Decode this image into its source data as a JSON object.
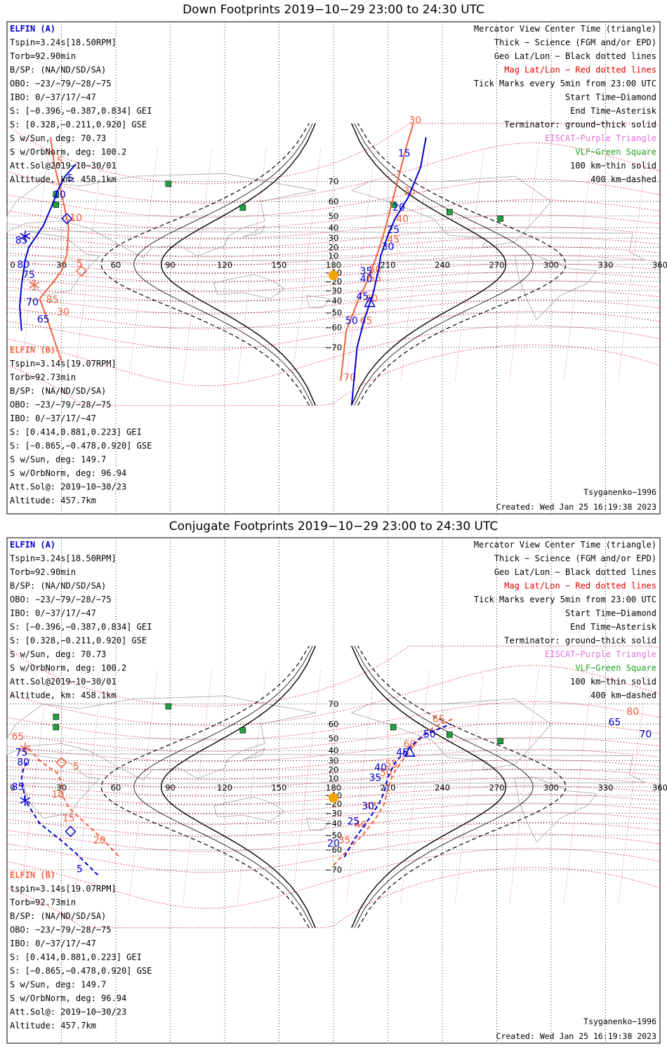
{
  "panels": [
    {
      "id": "down",
      "title": "Down Footprints 2019−10−29 23:00 to 24:30 UTC",
      "elfin_a": {
        "header": "ELFIN (A)",
        "lines": [
          "Tspin=3.24s[18.50RPM]",
          "Torb=92.90min",
          "B/SP: (NA/ND/SD/SA)",
          "OBO: −23/−79/−28/−75",
          "IBO: 0/−37/17/−47",
          "S: [−0.396,−0.387,0.834] GEI",
          "S: [0.328,−0.211,0.920] GSE",
          "S w/Sun, deg: 70.73",
          "S w/OrbNorm, deg: 100.2",
          "Att.Sol@2019−10−30/01",
          "Altitude, km: 458.1km"
        ]
      },
      "elfin_b": {
        "header": "ELFIN (B)",
        "lines": [
          "Tspin=3.14s[19.07RPM]",
          "Torb=92.73min",
          "B/SP: (NA/ND/SD/SA)",
          "OBO: −23/−79/−28/−75",
          "IBO: 0/−37/17/−47",
          "S: [0.414,0.881,0.223] GEI",
          "S: [−0.865,−0.478,0.920] GSE",
          "S w/Sun, deg: 149.7",
          "S w/OrbNorm, deg: 96.94",
          "Att.Sol@: 2019−10−30/23",
          "Altitude: 457.7km"
        ]
      },
      "legend": [
        {
          "text": "Mercator View Center Time (triangle)",
          "color": "#000000"
        },
        {
          "text": "Thick − Science (FGM and/or EPD)",
          "color": "#000000"
        },
        {
          "text": "Geo Lat/Lon − Black dotted lines",
          "color": "#000000"
        },
        {
          "text": "Mag Lat/Lon − Red dotted lines",
          "color": "#e00000"
        },
        {
          "text": "Tick Marks every 5min from 23:00 UTC",
          "color": "#000000"
        },
        {
          "text": "Start Time−Diamond",
          "color": "#000000"
        },
        {
          "text": "End Time−Asterisk",
          "color": "#000000"
        },
        {
          "text": "Terminator: ground−thick solid",
          "color": "#000000"
        },
        {
          "text": "EISCAT−Purple Triangle",
          "color": "#e070e0"
        },
        {
          "text": "VLF−Green Square",
          "color": "#20a020"
        },
        {
          "text": "100 km−thin solid",
          "color": "#000000"
        },
        {
          "text": "400 km−dashed",
          "color": "#000000"
        }
      ],
      "model": "Tsyganenko−1996",
      "created": "Created: Wed Jan 25 16:19:38 2023",
      "track_a": {
        "style": "solid",
        "points": [
          [
            38,
            76
          ],
          [
            32,
            72
          ],
          [
            28,
            66
          ],
          [
            25,
            58
          ],
          [
            20,
            42
          ],
          [
            12,
            20
          ],
          [
            10,
            5
          ],
          [
            9,
            -10
          ],
          [
            8,
            -24
          ],
          [
            7,
            -45
          ],
          [
            8,
            -62
          ]
        ],
        "labels": [
          {
            "t": "5",
            "lon": 35,
            "lat": 70
          },
          {
            "t": "10",
            "lon": 29,
            "lat": 62
          },
          {
            "t": "85",
            "lon": 8,
            "lat": 24
          },
          {
            "t": "80",
            "lon": 9,
            "lat": -4
          },
          {
            "t": "75",
            "lon": 12,
            "lat": -16
          },
          {
            "t": "70",
            "lon": 14,
            "lat": -44
          },
          {
            "t": "65",
            "lon": 20,
            "lat": -57
          }
        ],
        "markers": [
          {
            "type": "asterisk",
            "lon": 10,
            "lat": 32
          },
          {
            "type": "diamond",
            "lon": 33,
            "lat": 48
          }
        ],
        "track2": {
          "points": [
            [
              231,
              82
            ],
            [
              228,
              75
            ],
            [
              221,
              62
            ],
            [
              214,
              48
            ],
            [
              210,
              33
            ],
            [
              206,
              10
            ],
            [
              205,
              -4
            ],
            [
              202,
              -32
            ],
            [
              197,
              -55
            ],
            [
              193,
              -70
            ],
            [
              190,
              -84
            ]
          ],
          "labels": [
            {
              "t": "15",
              "lon": 219,
              "lat": 78
            },
            {
              "t": "20",
              "lon": 216,
              "lat": 54
            },
            {
              "t": "25",
              "lon": 213,
              "lat": 35
            },
            {
              "t": "30",
              "lon": 210,
              "lat": 17
            },
            {
              "t": "35",
              "lon": 198,
              "lat": -12
            },
            {
              "t": "40",
              "lon": 198,
              "lat": -21
            },
            {
              "t": "45",
              "lon": 196,
              "lat": -39
            },
            {
              "t": "50",
              "lon": 190,
              "lat": -58
            }
          ],
          "markers": [
            {
              "type": "triangle",
              "lon": 200,
              "lat": -42
            }
          ]
        }
      },
      "track_b": {
        "style": "solid",
        "points": [
          [
            24,
            82
          ],
          [
            26,
            76
          ],
          [
            31,
            60
          ],
          [
            34,
            40
          ],
          [
            33,
            12
          ],
          [
            30,
            -8
          ],
          [
            25,
            -22
          ],
          [
            18,
            -38
          ],
          [
            22,
            -54
          ],
          [
            30,
            -75
          ]
        ],
        "labels": [
          {
            "t": "5",
            "lon": 29,
            "lat": 76
          },
          {
            "t": "10",
            "lon": 38,
            "lat": 46
          },
          {
            "t": "5",
            "lon": 40,
            "lat": -3
          },
          {
            "t": "30",
            "lon": 31,
            "lat": -52
          },
          {
            "t": "85",
            "lon": 25,
            "lat": -42
          }
        ],
        "markers": [
          {
            "type": "diamond",
            "lon": 41,
            "lat": -8
          },
          {
            "type": "asterisk",
            "lon": 15,
            "lat": -24
          }
        ],
        "track2": {
          "points": [
            [
              224,
              84
            ],
            [
              220,
              80
            ],
            [
              214,
              66
            ],
            [
              210,
              48
            ],
            [
              207,
              30
            ],
            [
              203,
              5
            ],
            [
              199,
              -18
            ],
            [
              193,
              -42
            ],
            [
              187,
              -62
            ],
            [
              184,
              -80
            ]
          ],
          "labels": [
            {
              "t": "30",
              "lon": 225,
              "lat": 86
            },
            {
              "t": "35",
              "lon": 222,
              "lat": 64
            },
            {
              "t": "40",
              "lon": 218,
              "lat": 45
            },
            {
              "t": "45",
              "lon": 213,
              "lat": 25
            },
            {
              "t": "50",
              "lon": 203,
              "lat": -10
            },
            {
              "t": "55",
              "lon": 203,
              "lat": -20
            },
            {
              "t": "60",
              "lon": 201,
              "lat": -41
            },
            {
              "t": "65",
              "lon": 198,
              "lat": -58
            },
            {
              "t": "70",
              "lon": 189,
              "lat": -80
            }
          ],
          "markers": []
        }
      }
    },
    {
      "id": "conjugate",
      "title": "Conjugate Footprints 2019−10−29 23:00 to 24:30 UTC",
      "elfin_a": {
        "header": "ELFIN (A)",
        "lines": [
          "Tspin=3.24s[18.50RPM]",
          "Torb=92.90min",
          "B/SP: (NA/ND/SD/SA)",
          "OBO: −23/−79/−28/−75",
          "IBO: 0/−37/17/−47",
          "S: [−0.396,−0.387,0.834] GEI",
          "S: [0.328,−0.211,0.920] GSE",
          "S w/Sun, deg: 70.73",
          "S w/OrbNorm, deg: 100.2",
          "Att.Sol@2019−10−30/01",
          "Altitude, km: 458.1km"
        ]
      },
      "elfin_b": {
        "header": "ELFIN (B)",
        "lines": [
          "tspin=3.14s[19.07RPM]",
          "Torb=92.73min",
          "B/SP: (NA/ND/SD/SA)",
          "OBO: −23/−79/−28/−75",
          "IBO: 0/−37/17/−47",
          "S: [0.414,0.881,0.223] GEI",
          "S: [−0.865,−0.478,0.920] GSE",
          "S w/Sun, deg: 149.7",
          "S w/OrbNorm, deg: 96.94",
          "Att.Sol@: 2019−10−30/23",
          "Altitude: 457.7km"
        ]
      },
      "legend": [
        {
          "text": "Mercator View Center Time (triangle)",
          "color": "#000000"
        },
        {
          "text": "Thick − Science (FGM and/or EPD)",
          "color": "#000000"
        },
        {
          "text": "Geo Lat/Lon − Black dotted lines",
          "color": "#000000"
        },
        {
          "text": "Mag Lat/Lon − Red dotted lines",
          "color": "#e00000"
        },
        {
          "text": "Tick Marks every 5min from 23:00 UTC",
          "color": "#000000"
        },
        {
          "text": "Start Time−Diamond",
          "color": "#000000"
        },
        {
          "text": "End Time−Asterisk",
          "color": "#000000"
        },
        {
          "text": "Terminator: ground−thick solid",
          "color": "#000000"
        },
        {
          "text": "EISCAT−Purple Triangle",
          "color": "#e070e0"
        },
        {
          "text": "VLF−Green Square",
          "color": "#20a020"
        },
        {
          "text": "100 km−thin solid",
          "color": "#000000"
        },
        {
          "text": "400 km−dashed",
          "color": "#000000"
        }
      ],
      "model": "Tsyganenko−1996",
      "created": "Created: Wed Jan 25 16:19:38 2023",
      "track_a": {
        "style": "dashed",
        "points": [
          [
            11,
            28
          ],
          [
            9,
            22
          ],
          [
            8,
            10
          ],
          [
            9,
            -2
          ],
          [
            10,
            -16
          ],
          [
            18,
            -40
          ],
          [
            30,
            -54
          ],
          [
            38,
            -62
          ],
          [
            50,
            -72
          ]
        ],
        "labels": [
          {
            "t": "75",
            "lon": 8,
            "lat": 35
          },
          {
            "t": "80",
            "lon": 9,
            "lat": 25
          },
          {
            "t": "85",
            "lon": 6,
            "lat": -4
          },
          {
            "t": "5",
            "lon": 40,
            "lat": -71
          }
        ],
        "markers": [
          {
            "type": "asterisk",
            "lon": 10,
            "lat": -16
          },
          {
            "type": "diamond",
            "lon": 35,
            "lat": -47
          }
        ],
        "track2": {
          "points": [
            [
              186,
              -64
            ],
            [
              190,
              -56
            ],
            [
              196,
              -44
            ],
            [
              201,
              -32
            ],
            [
              205,
              -20
            ],
            [
              208,
              -6
            ],
            [
              210,
              12
            ],
            [
              214,
              28
            ],
            [
              220,
              40
            ],
            [
              230,
              53
            ],
            [
              245,
              60
            ]
          ],
          "labels": [
            {
              "t": "20",
              "lon": 180,
              "lat": -58
            },
            {
              "t": "25",
              "lon": 191,
              "lat": -41
            },
            {
              "t": "30",
              "lon": 199,
              "lat": -26
            },
            {
              "t": "35",
              "lon": 203,
              "lat": 7
            },
            {
              "t": "40",
              "lon": 206,
              "lat": 19
            },
            {
              "t": "45",
              "lon": 218,
              "lat": 35
            },
            {
              "t": "50",
              "lon": 233,
              "lat": 51
            },
            {
              "t": "65",
              "lon": 335,
              "lat": 59
            },
            {
              "t": "70",
              "lon": 352,
              "lat": 51
            }
          ],
          "markers": [
            {
              "type": "triangle",
              "lon": 222,
              "lat": 38
            }
          ]
        }
      },
      "track_b": {
        "style": "dashed",
        "points": [
          [
            12,
            42
          ],
          [
            18,
            30
          ],
          [
            28,
            16
          ],
          [
            30,
            4
          ],
          [
            30,
            -8
          ],
          [
            34,
            -24
          ],
          [
            42,
            -38
          ],
          [
            52,
            -52
          ],
          [
            62,
            -64
          ]
        ],
        "labels": [
          {
            "t": "5",
            "lon": 38,
            "lat": 20
          },
          {
            "t": "10",
            "lon": 28,
            "lat": -13
          },
          {
            "t": "15",
            "lon": 34,
            "lat": -38
          },
          {
            "t": "20",
            "lon": 51,
            "lat": -56
          },
          {
            "t": "65",
            "lon": 6,
            "lat": 49
          }
        ],
        "markers": [
          {
            "type": "diamond",
            "lon": 30,
            "lat": 28
          },
          {
            "type": "asterisk",
            "lon": 10,
            "lat": 42
          }
        ],
        "track2": {
          "points": [
            [
              180,
              -68
            ],
            [
              188,
              -60
            ],
            [
              196,
              -50
            ],
            [
              203,
              -36
            ],
            [
              208,
              -20
            ],
            [
              210,
              -2
            ],
            [
              213,
              16
            ],
            [
              218,
              30
            ],
            [
              225,
              46
            ],
            [
              235,
              58
            ],
            [
              246,
              63
            ]
          ],
          "labels": [
            {
              "t": "35",
              "lon": 186,
              "lat": -56
            },
            {
              "t": "40",
              "lon": 195,
              "lat": -44
            },
            {
              "t": "45",
              "lon": 201,
              "lat": -26
            },
            {
              "t": "50",
              "lon": 209,
              "lat": 13
            },
            {
              "t": "55",
              "lon": 212,
              "lat": 23
            },
            {
              "t": "60",
              "lon": 222,
              "lat": 43
            },
            {
              "t": "65",
              "lon": 238,
              "lat": 61
            },
            {
              "t": "80",
              "lon": 345,
              "lat": 65
            }
          ],
          "markers": []
        }
      }
    }
  ],
  "axes": {
    "lon_ticks": [
      "0",
      "30",
      "60",
      "90",
      "120",
      "150",
      "180",
      "210",
      "240",
      "270",
      "300",
      "330",
      "360"
    ],
    "lat_ticks": [
      "70",
      "60",
      "50",
      "40",
      "30",
      "20",
      "10",
      "−10",
      "−20",
      "−30",
      "−40",
      "−50",
      "−60",
      "−70"
    ]
  },
  "colors": {
    "elfin_a": "#0000d0",
    "elfin_b": "#f06040",
    "sun": "#f4a400",
    "vlf": "#20a040",
    "mag_grid": "#e00000",
    "eiscat": "#e070e0"
  }
}
